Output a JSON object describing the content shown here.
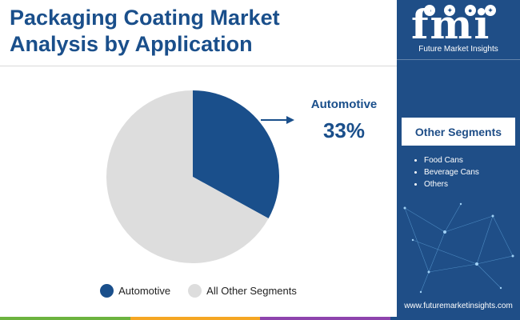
{
  "header": {
    "title_line1": "Packaging Coating Market",
    "title_line2": "Analysis by Application"
  },
  "chart_data": {
    "type": "pie",
    "title": "Packaging Coating Market Analysis by Application",
    "labels": [
      "Automotive",
      "All Other Segments"
    ],
    "values": [
      33,
      67
    ],
    "unit": "%",
    "colors": [
      "#1a4f8b",
      "#dddddd"
    ],
    "callout": {
      "label": "Automotive",
      "value_text": "33%"
    },
    "legend_position": "bottom"
  },
  "sidebar": {
    "logo_text": "fmi",
    "logo_subtitle": "Future Market Insights",
    "segments_title": "Other Segments",
    "segments": [
      "Food Cans",
      "Beverage Cans",
      "Others"
    ],
    "website": "www.futuremarketinsights.com"
  },
  "colors": {
    "accent": "#1a4f8b",
    "sidebar_bg": "#1f4e87",
    "pie_rest": "#dddddd",
    "bottom_bar": [
      "#6cb33f",
      "#f5a623",
      "#8e44ad",
      "#1f4e87"
    ]
  }
}
